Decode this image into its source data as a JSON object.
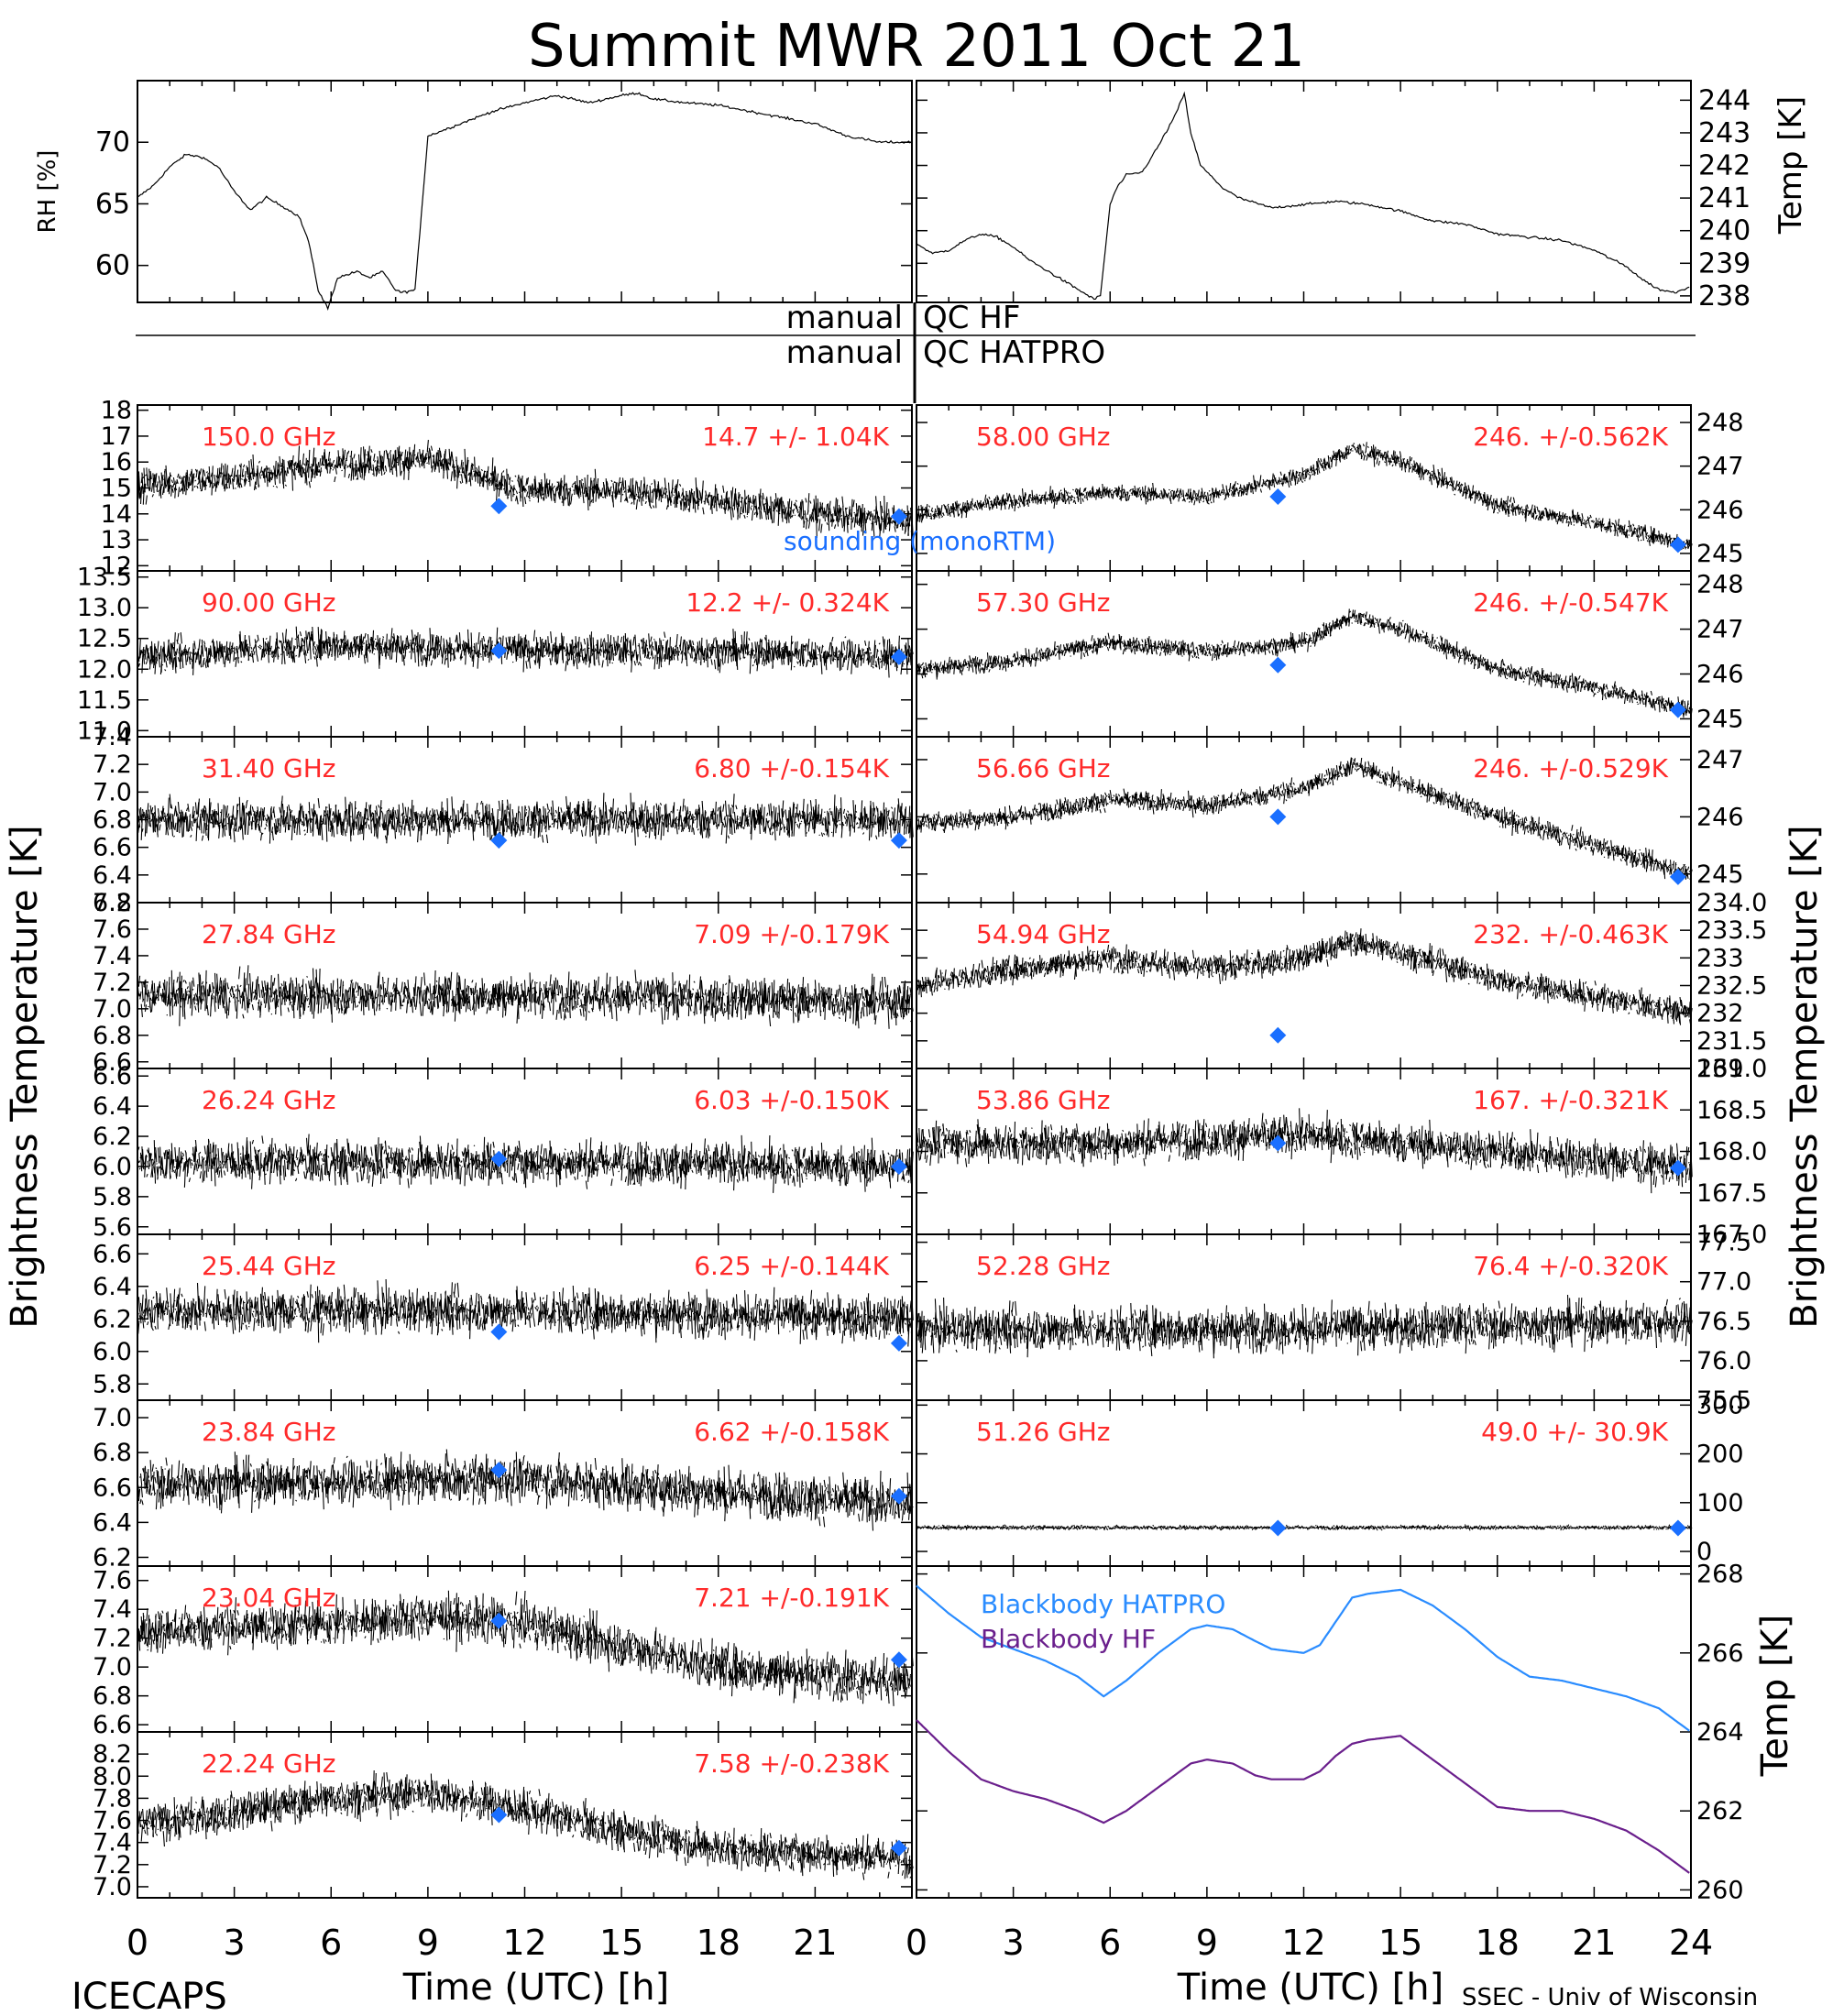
{
  "figure": {
    "title": "Summit MWR 2011 Oct 21",
    "left_ylabel": "Brightness Temperature [K]",
    "right_ylabel": "Brightness Temperature [K]",
    "xlabel": "Time (UTC) [h]",
    "xticks": [
      "0",
      "3",
      "6",
      "9",
      "12",
      "15",
      "18",
      "21",
      "24"
    ],
    "left_xticks": [
      "0",
      "3",
      "6",
      "9",
      "12",
      "15",
      "18",
      "21"
    ],
    "footer_left": "ICECAPS",
    "footer_right": "SSEC - Univ of Wisconsin",
    "qc_hf": "manual QC HF",
    "qc_hatpro": "manual QC HATPRO",
    "sounding_label": "sounding (monoRTM)",
    "colors": {
      "text": "#ff2a2a",
      "marker": "#1a6fff",
      "hatpro": "#2a8cff",
      "hf": "#6a1f8c",
      "trace": "#000000"
    }
  },
  "chart_data": [
    {
      "type": "line",
      "id": "rh",
      "ylabel": "RH [%]",
      "ylim": [
        57,
        75
      ],
      "yticks": [
        60,
        65,
        70
      ],
      "xlim": [
        0,
        24
      ],
      "series": [
        {
          "x": [
            0,
            0.5,
            1,
            1.5,
            2,
            2.5,
            3,
            3.5,
            4,
            4.5,
            5,
            5.3,
            5.6,
            5.9,
            6.2,
            6.8,
            7.2,
            7.6,
            8,
            8.2,
            8.6,
            9,
            10,
            11,
            12,
            12.5,
            13,
            14,
            15,
            15.5,
            16,
            17,
            18,
            19,
            20,
            21,
            22,
            23,
            24
          ],
          "y": [
            65.5,
            66.5,
            68,
            69,
            68.8,
            68,
            66,
            64.5,
            65.5,
            64.8,
            64,
            62,
            58,
            56.5,
            59,
            59.5,
            59,
            59.5,
            58,
            57.8,
            58,
            70.5,
            71.5,
            72.5,
            73.2,
            73.5,
            73.8,
            73.2,
            73.8,
            74,
            73.5,
            73.2,
            73,
            72.5,
            72,
            71.5,
            70.5,
            70,
            70
          ]
        }
      ]
    },
    {
      "type": "line",
      "id": "temp",
      "ylabel": "Temp [K]",
      "ylim": [
        237.8,
        244.6
      ],
      "yticks": [
        238,
        239,
        240,
        241,
        242,
        243,
        244
      ],
      "xlim": [
        0,
        24
      ],
      "series": [
        {
          "x": [
            0,
            0.5,
            1,
            1.5,
            2,
            2.5,
            3,
            3.5,
            4,
            4.5,
            5,
            5.5,
            5.7,
            6,
            6.2,
            6.5,
            7,
            7.5,
            8,
            8.3,
            8.5,
            8.8,
            9.5,
            10,
            11,
            12,
            13,
            14,
            15,
            16,
            17,
            18,
            19,
            20,
            21,
            22,
            22.5,
            23,
            23.5,
            24
          ],
          "y": [
            239.6,
            239.3,
            239.4,
            239.7,
            239.9,
            239.8,
            239.5,
            239.1,
            238.8,
            238.5,
            238.2,
            237.9,
            238,
            240.8,
            241.3,
            241.7,
            241.8,
            242.6,
            243.5,
            244.2,
            243,
            242,
            241.3,
            241,
            240.7,
            240.8,
            240.9,
            240.8,
            240.6,
            240.3,
            240.2,
            239.9,
            239.8,
            239.7,
            239.4,
            238.9,
            238.5,
            238.2,
            238.1,
            238.3
          ]
        }
      ]
    },
    {
      "type": "scatter",
      "id": "150-00",
      "freq": "150.0 GHz",
      "stat": "14.7 +/- 1.04K",
      "side": "left",
      "ylim": [
        11.8,
        18.2
      ],
      "yticks": [
        "12",
        "13",
        "14",
        "15",
        "16",
        "17",
        "18"
      ],
      "xlim": [
        0,
        24
      ],
      "trend": {
        "x": [
          0,
          3,
          6,
          9,
          12,
          15,
          18,
          21,
          24
        ],
        "y": [
          15.1,
          15.4,
          15.9,
          16.1,
          14.9,
          14.9,
          14.5,
          14,
          13.7
        ]
      },
      "noise": 0.8,
      "sounding": [
        [
          11.2,
          14.3
        ],
        [
          23.6,
          13.9
        ]
      ]
    },
    {
      "type": "scatter",
      "id": "58-00",
      "freq": "58.00 GHz",
      "stat": "246. +/-0.562K",
      "side": "right",
      "ylim": [
        244.6,
        248.4
      ],
      "yticks": [
        "245",
        "246",
        "247",
        "248"
      ],
      "xlim": [
        0,
        24
      ],
      "trend": {
        "x": [
          0,
          3,
          6,
          9,
          12,
          13.5,
          15,
          18,
          21,
          24
        ],
        "y": [
          245.9,
          246.2,
          246.4,
          246.3,
          246.8,
          247.4,
          247.1,
          246.1,
          245.7,
          245.2
        ]
      },
      "noise": 0.25,
      "sounding": [
        [
          11.2,
          246.3
        ],
        [
          23.6,
          245.2
        ]
      ]
    },
    {
      "type": "scatter",
      "id": "90-00",
      "freq": "90.00 GHz",
      "stat": "12.2 +/- 0.324K",
      "side": "left",
      "ylim": [
        10.9,
        13.6
      ],
      "yticks": [
        "11.0",
        "11.5",
        "12.0",
        "12.5",
        "13.0",
        "13.5"
      ],
      "xlim": [
        0,
        24
      ],
      "trend": {
        "x": [
          0,
          6,
          12,
          18,
          24
        ],
        "y": [
          12.2,
          12.4,
          12.3,
          12.3,
          12.2
        ]
      },
      "noise": 0.35,
      "sounding": [
        [
          11.2,
          12.3
        ],
        [
          23.6,
          12.2
        ]
      ]
    },
    {
      "type": "scatter",
      "id": "57-30",
      "freq": "57.30 GHz",
      "stat": "246. +/-0.547K",
      "side": "right",
      "ylim": [
        244.6,
        248.3
      ],
      "yticks": [
        "245",
        "246",
        "247",
        "248"
      ],
      "xlim": [
        0,
        24
      ],
      "trend": {
        "x": [
          0,
          3,
          6,
          9,
          12,
          13.5,
          15,
          18,
          21,
          24
        ],
        "y": [
          246.1,
          246.3,
          246.7,
          246.5,
          246.7,
          247.3,
          247,
          246.1,
          245.7,
          245.2
        ]
      },
      "noise": 0.25,
      "sounding": [
        [
          11.2,
          246.2
        ],
        [
          23.6,
          245.2
        ]
      ]
    },
    {
      "type": "scatter",
      "id": "31-40",
      "freq": "31.40 GHz",
      "stat": "6.80 +/-0.154K",
      "side": "left",
      "ylim": [
        6.2,
        7.4
      ],
      "yticks": [
        "6.2",
        "6.4",
        "6.6",
        "6.8",
        "7.0",
        "7.2",
        "7.4"
      ],
      "xlim": [
        0,
        24
      ],
      "trend": {
        "x": [
          0,
          12,
          24
        ],
        "y": [
          6.8,
          6.8,
          6.8
        ]
      },
      "noise": 0.18,
      "sounding": [
        [
          11.2,
          6.65
        ],
        [
          23.6,
          6.65
        ]
      ]
    },
    {
      "type": "scatter",
      "id": "56-66",
      "freq": "56.66 GHz",
      "stat": "246. +/-0.529K",
      "side": "right",
      "ylim": [
        244.5,
        247.4
      ],
      "yticks": [
        "245",
        "246",
        "247"
      ],
      "xlim": [
        0,
        24
      ],
      "trend": {
        "x": [
          0,
          3,
          6,
          9,
          12,
          13.5,
          15,
          18,
          21,
          24
        ],
        "y": [
          245.9,
          246,
          246.3,
          246.2,
          246.5,
          246.9,
          246.6,
          246,
          245.5,
          245
        ]
      },
      "noise": 0.22,
      "sounding": [
        [
          11.2,
          246
        ],
        [
          23.6,
          244.95
        ]
      ]
    },
    {
      "type": "scatter",
      "id": "27-84",
      "freq": "27.84 GHz",
      "stat": "7.09 +/-0.179K",
      "side": "left",
      "ylim": [
        6.55,
        7.8
      ],
      "yticks": [
        "6.6",
        "6.8",
        "7.0",
        "7.2",
        "7.4",
        "7.6",
        "7.8"
      ],
      "xlim": [
        0,
        24
      ],
      "trend": {
        "x": [
          0,
          12,
          24
        ],
        "y": [
          7.1,
          7.1,
          7.05
        ]
      },
      "noise": 0.2,
      "sounding": []
    },
    {
      "type": "scatter",
      "id": "54-94",
      "freq": "54.94 GHz",
      "stat": "232. +/-0.463K",
      "side": "right",
      "ylim": [
        231,
        234
      ],
      "yticks": [
        "231",
        "231.5",
        "232",
        "232.5",
        "233",
        "233.5",
        "234.0"
      ],
      "xlim": [
        0,
        24
      ],
      "trend": {
        "x": [
          0,
          3,
          6,
          9,
          12,
          13.5,
          15,
          18,
          21,
          24
        ],
        "y": [
          232.5,
          232.8,
          233,
          232.8,
          233,
          233.3,
          233.1,
          232.6,
          232.3,
          232
        ]
      },
      "noise": 0.3,
      "sounding": [
        [
          11.2,
          231.6
        ]
      ]
    },
    {
      "type": "scatter",
      "id": "26-24",
      "freq": "26.24 GHz",
      "stat": "6.03 +/-0.150K",
      "side": "left",
      "ylim": [
        5.55,
        6.65
      ],
      "yticks": [
        "5.6",
        "5.8",
        "6.0",
        "6.2",
        "6.4",
        "6.6"
      ],
      "xlim": [
        0,
        24
      ],
      "trend": {
        "x": [
          0,
          12,
          24
        ],
        "y": [
          6.03,
          6.03,
          6.0
        ]
      },
      "noise": 0.18,
      "sounding": [
        [
          11.2,
          6.05
        ],
        [
          23.6,
          6.0
        ]
      ]
    },
    {
      "type": "scatter",
      "id": "53-86",
      "freq": "53.86 GHz",
      "stat": "167. +/-0.321K",
      "side": "right",
      "ylim": [
        167,
        169
      ],
      "yticks": [
        "167.0",
        "167.5",
        "168.0",
        "168.5",
        "169.0"
      ],
      "xlim": [
        0,
        24
      ],
      "trend": {
        "x": [
          0,
          6,
          12,
          18,
          24
        ],
        "y": [
          168.1,
          168.1,
          168.2,
          168,
          167.8
        ]
      },
      "noise": 0.3,
      "sounding": [
        [
          11.2,
          168.1
        ],
        [
          23.6,
          167.8
        ]
      ]
    },
    {
      "type": "scatter",
      "id": "25-44",
      "freq": "25.44 GHz",
      "stat": "6.25 +/-0.144K",
      "side": "left",
      "ylim": [
        5.7,
        6.72
      ],
      "yticks": [
        "5.8",
        "6.0",
        "6.2",
        "6.4",
        "6.6"
      ],
      "xlim": [
        0,
        24
      ],
      "trend": {
        "x": [
          0,
          12,
          24
        ],
        "y": [
          6.25,
          6.25,
          6.2
        ]
      },
      "noise": 0.17,
      "sounding": [
        [
          11.2,
          6.12
        ],
        [
          23.6,
          6.05
        ]
      ]
    },
    {
      "type": "scatter",
      "id": "52-28",
      "freq": "52.28 GHz",
      "stat": "76.4 +/-0.320K",
      "side": "right",
      "ylim": [
        75.5,
        77.6
      ],
      "yticks": [
        "75.5",
        "76.0",
        "76.5",
        "77.0",
        "77.5"
      ],
      "xlim": [
        0,
        24
      ],
      "trend": {
        "x": [
          0,
          12,
          24
        ],
        "y": [
          76.4,
          76.4,
          76.5
        ]
      },
      "noise": 0.35,
      "sounding": []
    },
    {
      "type": "scatter",
      "id": "23-84",
      "freq": "23.84 GHz",
      "stat": "6.62 +/-0.158K",
      "side": "left",
      "ylim": [
        6.15,
        7.1
      ],
      "yticks": [
        "6.2",
        "6.4",
        "6.6",
        "6.8",
        "7.0"
      ],
      "xlim": [
        0,
        24
      ],
      "trend": {
        "x": [
          0,
          12,
          24
        ],
        "y": [
          6.62,
          6.65,
          6.5
        ]
      },
      "noise": 0.17,
      "sounding": [
        [
          11.2,
          6.7
        ],
        [
          23.6,
          6.55
        ]
      ]
    },
    {
      "type": "scatter",
      "id": "51-26",
      "freq": "51.26 GHz",
      "stat": "49.0 +/- 30.9K",
      "side": "right",
      "ylim": [
        -30,
        310
      ],
      "yticks": [
        "0",
        "100",
        "200",
        "300"
      ],
      "xlim": [
        0,
        24
      ],
      "trend": {
        "x": [
          0,
          12,
          24
        ],
        "y": [
          49,
          49,
          49
        ]
      },
      "noise": 6,
      "sounding": [
        [
          11.2,
          48
        ],
        [
          23.6,
          48
        ]
      ]
    },
    {
      "type": "scatter",
      "id": "23-04",
      "freq": "23.04 GHz",
      "stat": "7.21 +/-0.191K",
      "side": "left",
      "ylim": [
        6.55,
        7.7
      ],
      "yticks": [
        "6.6",
        "6.8",
        "7.0",
        "7.2",
        "7.4",
        "7.6"
      ],
      "xlim": [
        0,
        24
      ],
      "trend": {
        "x": [
          0,
          6,
          9,
          12,
          15,
          18,
          24
        ],
        "y": [
          7.25,
          7.3,
          7.35,
          7.3,
          7.15,
          7.0,
          6.9
        ]
      },
      "noise": 0.2,
      "sounding": [
        [
          11.2,
          7.32
        ],
        [
          23.6,
          7.05
        ]
      ]
    },
    {
      "type": "scatter",
      "id": "22-24",
      "freq": "22.24 GHz",
      "stat": "7.58 +/-0.238K",
      "side": "left",
      "ylim": [
        6.9,
        8.4
      ],
      "yticks": [
        "7.0",
        "7.2",
        "7.4",
        "7.6",
        "7.8",
        "8.0",
        "8.2"
      ],
      "xlim": [
        0,
        24
      ],
      "trend": {
        "x": [
          0,
          6,
          9,
          12,
          15,
          18,
          24
        ],
        "y": [
          7.55,
          7.8,
          7.85,
          7.7,
          7.5,
          7.35,
          7.25
        ]
      },
      "noise": 0.22,
      "sounding": [
        [
          11.2,
          7.65
        ],
        [
          23.6,
          7.35
        ]
      ]
    },
    {
      "type": "line",
      "id": "blackbody",
      "ylabel": "Temp [K]",
      "ylim": [
        259.8,
        268.2
      ],
      "yticks": [
        "260",
        "262",
        "264",
        "266",
        "268"
      ],
      "xlim": [
        0,
        24
      ],
      "series": [
        {
          "name": "Blackbody HATPRO",
          "x": [
            0,
            1,
            2,
            3,
            4,
            5,
            5.8,
            6.5,
            7.5,
            8.5,
            9,
            9.8,
            10.5,
            11,
            12,
            12.5,
            13,
            13.5,
            14,
            15,
            16,
            17,
            18,
            19,
            20,
            21,
            22,
            23,
            24
          ],
          "y": [
            267.7,
            267,
            266.4,
            266.1,
            265.8,
            265.4,
            264.9,
            265.3,
            266,
            266.6,
            266.7,
            266.6,
            266.3,
            266.1,
            266,
            266.2,
            266.8,
            267.4,
            267.5,
            267.6,
            267.2,
            266.6,
            265.9,
            265.4,
            265.3,
            265.1,
            264.9,
            264.6,
            264
          ]
        },
        {
          "name": "Blackbody HF",
          "x": [
            0,
            1,
            2,
            3,
            4,
            5,
            5.8,
            6.5,
            7.5,
            8.5,
            9,
            9.8,
            10.5,
            11,
            12,
            12.5,
            13,
            13.5,
            14,
            15,
            16,
            17,
            18,
            19,
            20,
            21,
            22,
            23,
            24
          ],
          "y": [
            264.3,
            263.5,
            262.8,
            262.5,
            262.3,
            262,
            261.7,
            262,
            262.6,
            263.2,
            263.3,
            263.2,
            262.9,
            262.8,
            262.8,
            263,
            263.4,
            263.7,
            263.8,
            263.9,
            263.3,
            262.7,
            262.1,
            262,
            262,
            261.8,
            261.5,
            261,
            260.4
          ]
        }
      ]
    }
  ]
}
